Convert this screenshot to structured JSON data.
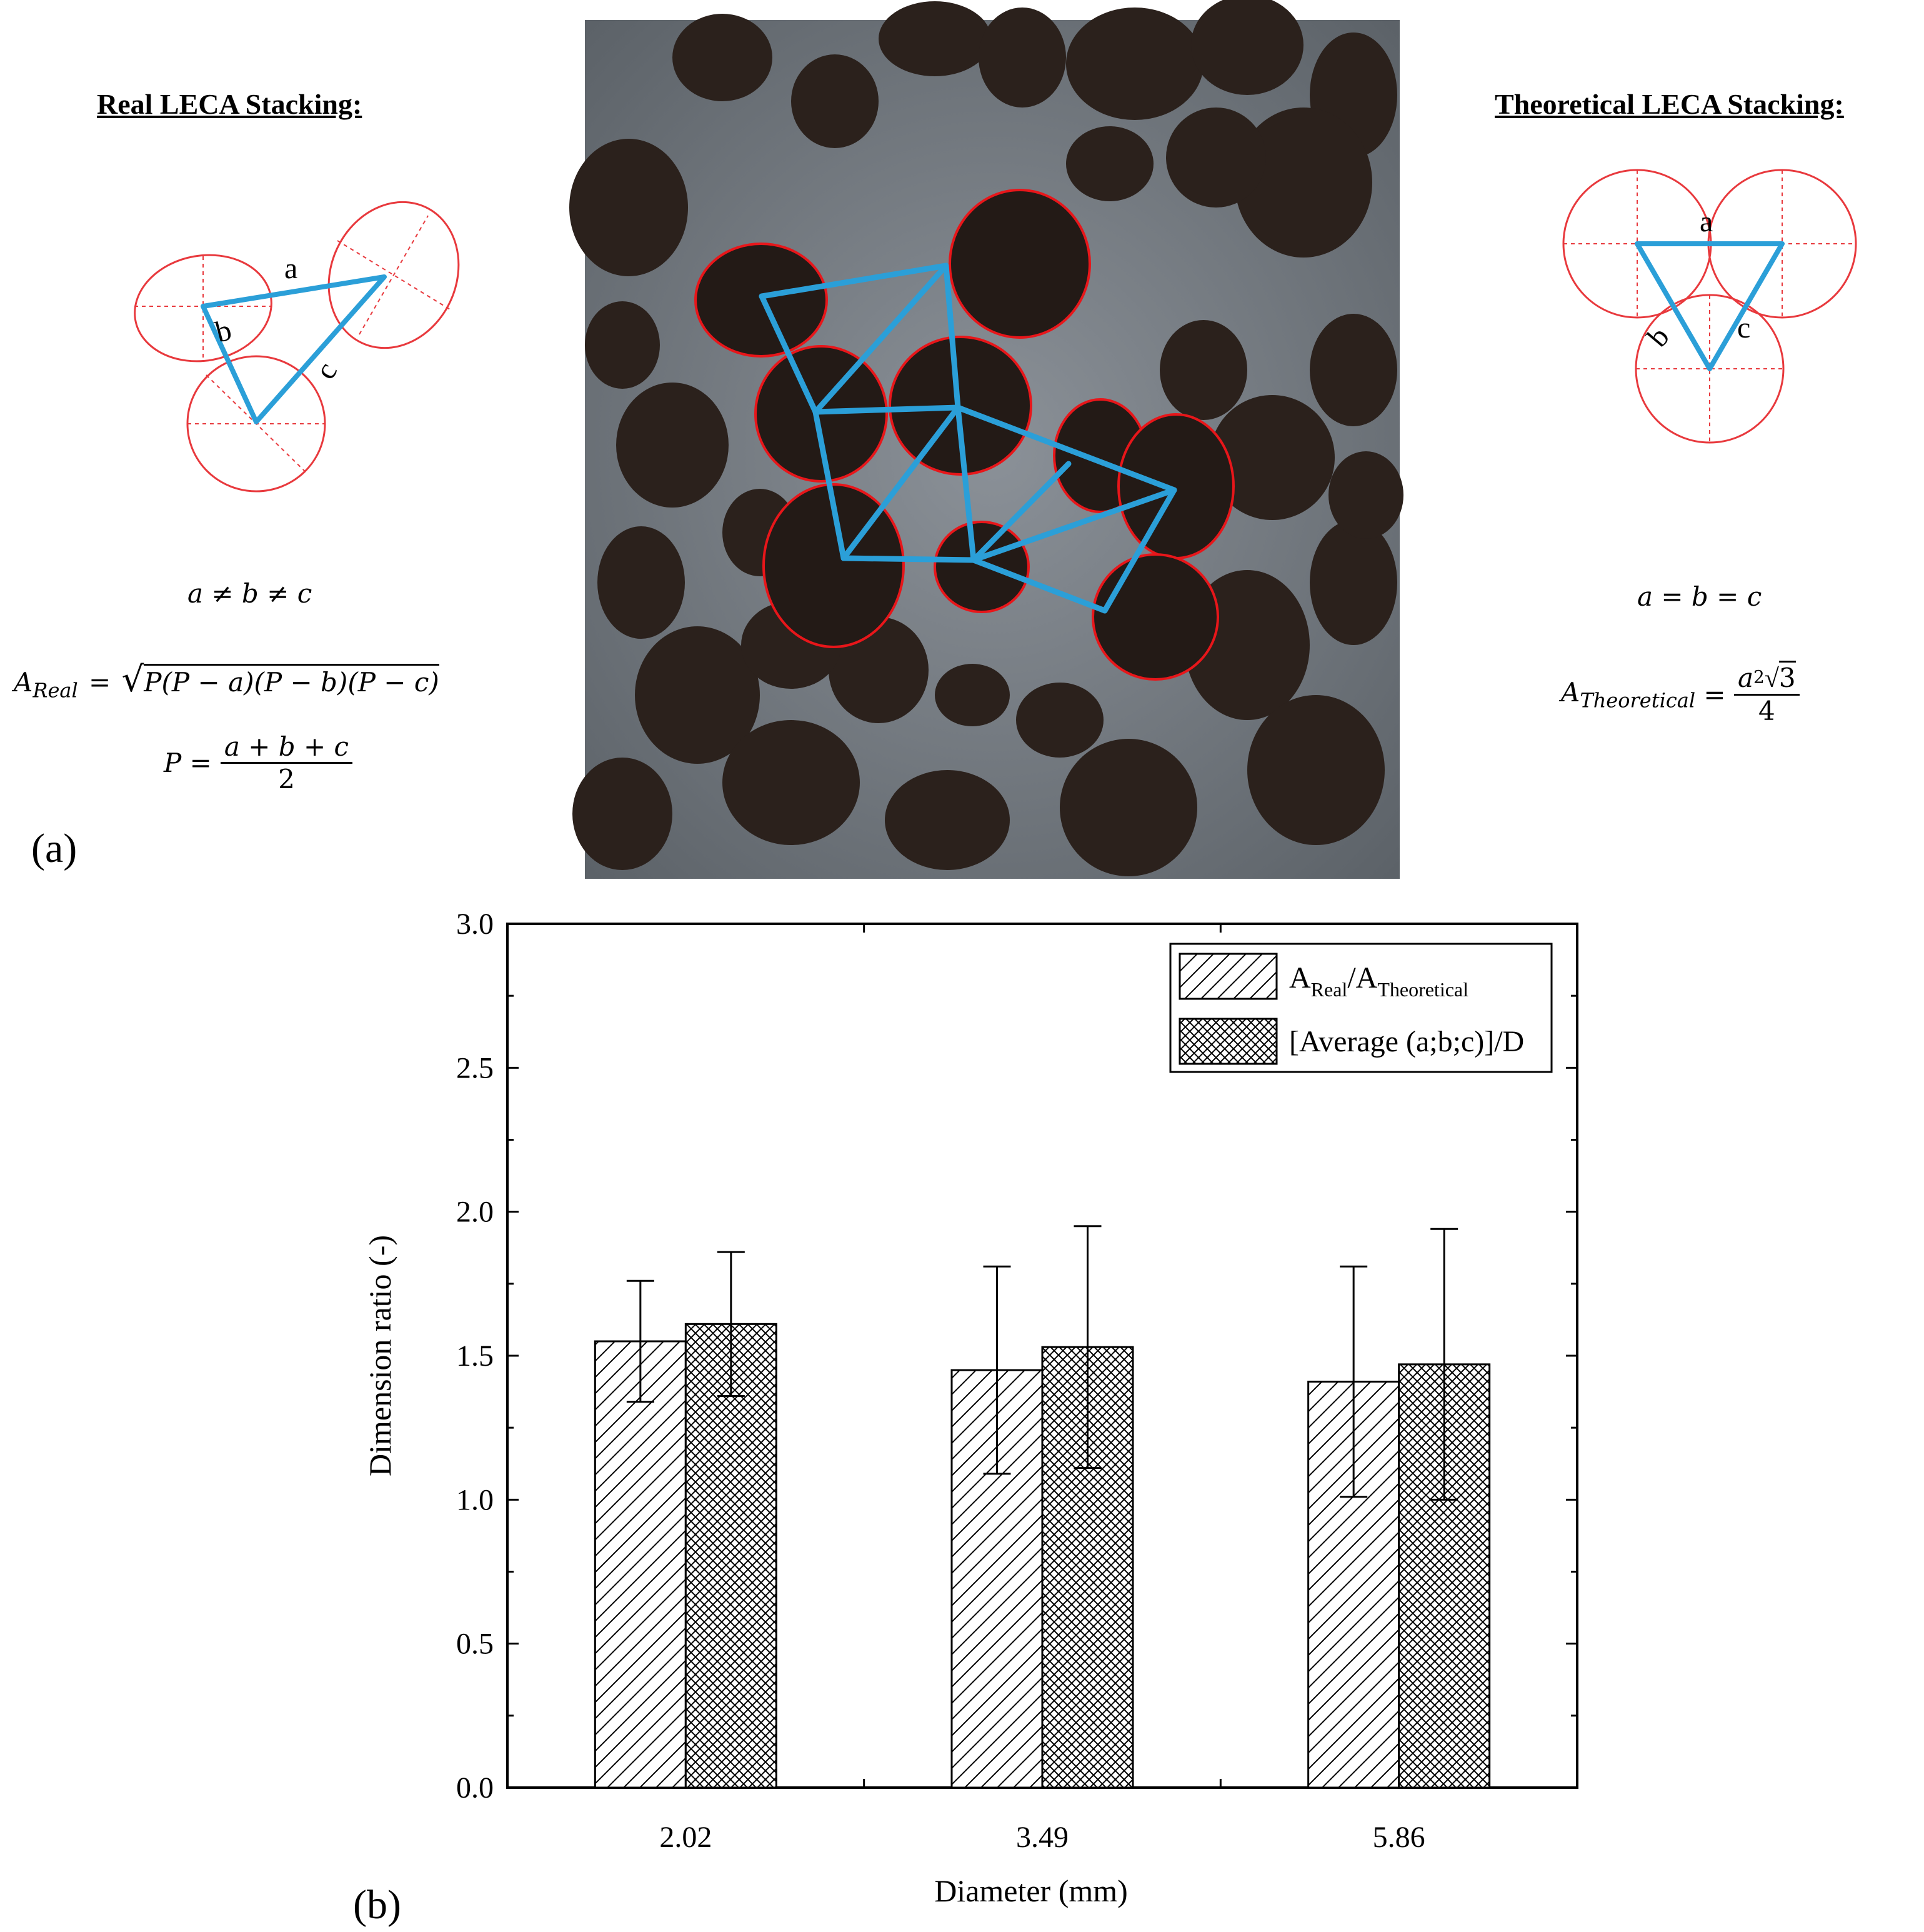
{
  "panel_a": {
    "label": "(a)",
    "real": {
      "heading": "Real LECA Stacking:",
      "side_a": "a",
      "side_b": "b",
      "side_c": "c",
      "neq": "a ≠ b ≠ c",
      "area_lhs_main": "A",
      "area_lhs_sub": "Real",
      "area_rhs": "P(P − a)(P − b)(P − c)",
      "p_lhs": "P =",
      "p_num": "a + b + c",
      "p_den": "2"
    },
    "theoretical": {
      "heading": "Theoretical LECA Stacking:",
      "side_a": "a",
      "side_b": "b",
      "side_c": "c",
      "eq": "a = b = c",
      "area_lhs_main": "A",
      "area_lhs_sub": "Theoretical",
      "area_num_a": "a",
      "area_num_exp": "2",
      "area_num_root": "3",
      "area_den": "4"
    },
    "photo": {
      "particle_color": "#2b211c",
      "background_color": "#7e858c",
      "outline_color": "#e8161a",
      "link_color": "#2b9fd8"
    }
  },
  "panel_b": {
    "label": "(b)"
  },
  "chart_data": {
    "type": "bar",
    "xlabel": "Diameter (mm)",
    "ylabel": "Dimension ratio (-)",
    "categories": [
      "2.02",
      "3.49",
      "5.86"
    ],
    "ylim": [
      0,
      3.0
    ],
    "yticks": [
      "0.0",
      "0.5",
      "1.0",
      "1.5",
      "2.0",
      "2.5",
      "3.0"
    ],
    "grid": false,
    "legend_position": "top-right",
    "series": [
      {
        "name_main": "A",
        "name_sub1": "Real",
        "name_mid": "/A",
        "name_sub2": "Theoretical",
        "pattern": "diagonal-hatch",
        "values": [
          1.55,
          1.45,
          1.41
        ],
        "error": [
          0.21,
          0.36,
          0.4
        ]
      },
      {
        "name": "[Average (a;b;c)]/D",
        "pattern": "cross-hatch",
        "values": [
          1.61,
          1.53,
          1.47
        ],
        "error": [
          0.25,
          0.42,
          0.47
        ]
      }
    ]
  }
}
